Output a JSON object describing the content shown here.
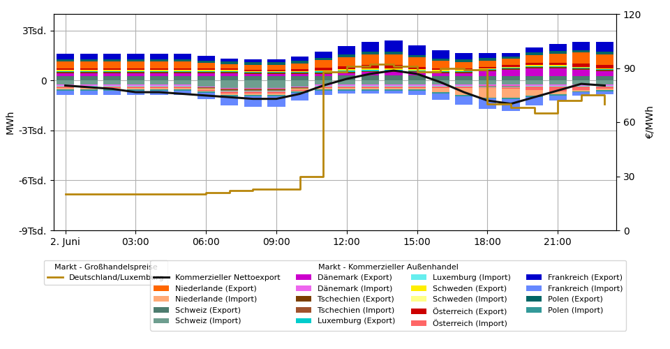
{
  "chart_data": {
    "type": "bar",
    "stacked": true,
    "grid": true,
    "x": [
      0,
      1,
      2,
      3,
      4,
      5,
      6,
      7,
      8,
      9,
      10,
      11,
      12,
      13,
      14,
      15,
      16,
      17,
      18,
      19,
      20,
      21,
      22,
      23
    ],
    "xlim": [
      -0.5,
      23.5
    ],
    "xticks": [
      {
        "value": 0,
        "label": "2. Juni"
      },
      {
        "value": 3,
        "label": "03:00"
      },
      {
        "value": 6,
        "label": "06:00"
      },
      {
        "value": 9,
        "label": "09:00"
      },
      {
        "value": 12,
        "label": "12:00"
      },
      {
        "value": 15,
        "label": "15:00"
      },
      {
        "value": 18,
        "label": "18:00"
      },
      {
        "value": 21,
        "label": "21:00"
      }
    ],
    "ylim": [
      -9000,
      4000
    ],
    "yticks": [
      {
        "value": -9000,
        "label": "-9Tsd."
      },
      {
        "value": -6000,
        "label": "-6Tsd."
      },
      {
        "value": -3000,
        "label": "-3Tsd."
      },
      0,
      {
        "value": 3000,
        "label": "3Tsd."
      }
    ],
    "y2lim": [
      0,
      120
    ],
    "y2ticks": [
      0,
      30,
      60,
      90,
      120
    ],
    "y_label": "MWh",
    "y2_label": "€/MWh",
    "series": [
      {
        "name": "Schweiz (Export)",
        "color": "#4D7C6F",
        "values": [
          250,
          250,
          250,
          250,
          250,
          250,
          250,
          250,
          250,
          250,
          250,
          250,
          300,
          300,
          300,
          300,
          250,
          250,
          250,
          250,
          250,
          250,
          250,
          250
        ]
      },
      {
        "name": "Schweiz (Import)",
        "color": "#6E9E8F",
        "values": [
          -250,
          -250,
          -250,
          -250,
          -250,
          -250,
          -350,
          -450,
          -450,
          -450,
          -350,
          -250,
          -250,
          -250,
          -250,
          -250,
          -250,
          -250,
          -250,
          -250,
          -250,
          -250,
          -250,
          -250
        ]
      },
      {
        "name": "Dänemark (Export)",
        "color": "#CC00CC",
        "values": [
          200,
          200,
          200,
          200,
          200,
          200,
          200,
          200,
          150,
          150,
          150,
          150,
          150,
          200,
          200,
          200,
          200,
          200,
          300,
          400,
          500,
          500,
          400,
          300
        ]
      },
      {
        "name": "Dänemark (Import)",
        "color": "#EE66EE",
        "values": [
          -50,
          -50,
          -50,
          -50,
          -50,
          -50,
          -50,
          -50,
          -50,
          -50,
          -50,
          -50,
          -50,
          -50,
          -50,
          -50,
          -50,
          -50,
          -80,
          -80,
          -50,
          -50,
          -50,
          -50
        ]
      },
      {
        "name": "Tschechien (Export)",
        "color": "#7B3F00",
        "values": [
          80,
          80,
          80,
          80,
          80,
          80,
          80,
          80,
          80,
          80,
          80,
          80,
          80,
          80,
          80,
          80,
          80,
          80,
          80,
          80,
          80,
          80,
          80,
          80
        ]
      },
      {
        "name": "Tschechien (Import)",
        "color": "#A0522D",
        "values": [
          -40,
          -40,
          -40,
          -40,
          -40,
          -40,
          -80,
          -120,
          -120,
          -120,
          -80,
          -40,
          -40,
          -40,
          -40,
          -40,
          -40,
          -40,
          -40,
          -40,
          -40,
          -40,
          -40,
          -40
        ]
      },
      {
        "name": "Luxemburg (Export)",
        "color": "#00CCCC",
        "values": [
          40,
          40,
          40,
          40,
          40,
          40,
          40,
          40,
          40,
          40,
          40,
          80,
          80,
          80,
          80,
          40,
          40,
          40,
          40,
          40,
          40,
          40,
          40,
          40
        ]
      },
      {
        "name": "Luxemburg (Import)",
        "color": "#66EEEE",
        "values": [
          -15,
          -15,
          -15,
          -15,
          -15,
          -15,
          -15,
          -25,
          -25,
          -25,
          -15,
          -15,
          -15,
          -15,
          -15,
          -15,
          -15,
          -15,
          -15,
          -15,
          -15,
          -15,
          -15,
          -15
        ]
      },
      {
        "name": "Schweden (Export)",
        "color": "#FFEE00",
        "values": [
          60,
          60,
          60,
          60,
          60,
          60,
          60,
          60,
          60,
          60,
          60,
          60,
          60,
          60,
          60,
          60,
          60,
          60,
          60,
          60,
          60,
          60,
          60,
          60
        ]
      },
      {
        "name": "Schweden (Import)",
        "color": "#FFFF88",
        "values": [
          -20,
          -20,
          -20,
          -20,
          -20,
          -20,
          -20,
          -20,
          -20,
          -20,
          -20,
          -20,
          -20,
          -20,
          -20,
          -20,
          -20,
          -20,
          -20,
          -20,
          -20,
          -20,
          -20,
          -20
        ]
      },
      {
        "name": "Österreich (Export)",
        "color": "#CC0000",
        "values": [
          100,
          100,
          100,
          100,
          100,
          100,
          80,
          80,
          80,
          80,
          100,
          150,
          200,
          200,
          200,
          150,
          100,
          100,
          100,
          100,
          150,
          150,
          200,
          200
        ]
      },
      {
        "name": "Österreich (Import)",
        "color": "#FF6666",
        "values": [
          -60,
          -60,
          -60,
          -60,
          -60,
          -60,
          -80,
          -120,
          -120,
          -120,
          -80,
          -60,
          -60,
          -60,
          -60,
          -60,
          -60,
          -60,
          -60,
          -80,
          -180,
          -270,
          -180,
          -120
        ]
      },
      {
        "name": "Niederlande (Export)",
        "color": "#FF6600",
        "values": [
          400,
          400,
          400,
          400,
          400,
          400,
          350,
          280,
          280,
          280,
          350,
          450,
          550,
          650,
          650,
          550,
          450,
          380,
          380,
          380,
          450,
          550,
          650,
          650
        ]
      },
      {
        "name": "Niederlande (Import)",
        "color": "#FFAA77",
        "values": [
          -80,
          -80,
          -80,
          -80,
          -80,
          -80,
          -80,
          -80,
          -80,
          -80,
          -80,
          -80,
          -80,
          -80,
          -80,
          -80,
          -250,
          -450,
          -550,
          -550,
          -350,
          -180,
          -80,
          -80
        ]
      },
      {
        "name": "Polen (Export)",
        "color": "#006666",
        "values": [
          150,
          150,
          150,
          150,
          150,
          150,
          150,
          150,
          150,
          150,
          150,
          150,
          150,
          150,
          150,
          150,
          150,
          150,
          150,
          150,
          150,
          150,
          150,
          150
        ]
      },
      {
        "name": "Polen (Import)",
        "color": "#339999",
        "values": [
          -80,
          -80,
          -80,
          -80,
          -80,
          -80,
          -80,
          -80,
          -80,
          -80,
          -80,
          -80,
          -80,
          -80,
          -80,
          -80,
          -80,
          -80,
          -80,
          -80,
          -80,
          -80,
          -80,
          -80
        ]
      },
      {
        "name": "Frankreich (Export)",
        "color": "#0000CC",
        "values": [
          350,
          350,
          350,
          350,
          350,
          350,
          280,
          180,
          180,
          180,
          280,
          380,
          500,
          600,
          700,
          600,
          500,
          400,
          300,
          200,
          300,
          400,
          500,
          600
        ]
      },
      {
        "name": "Frankreich (Import)",
        "color": "#6688FF",
        "values": [
          -250,
          -250,
          -250,
          -250,
          -250,
          -250,
          -350,
          -550,
          -650,
          -650,
          -450,
          -250,
          -180,
          -180,
          -180,
          -250,
          -380,
          -500,
          -600,
          -700,
          -500,
          -300,
          -180,
          -180
        ]
      },
      {
        "name": "Kommerzieller Nettoexport",
        "type": "line",
        "color": "#111111",
        "values": [
          -300,
          -400,
          -500,
          -700,
          -700,
          -800,
          -900,
          -1000,
          -1100,
          -1100,
          -800,
          -300,
          100,
          400,
          600,
          400,
          -100,
          -700,
          -1200,
          -1400,
          -1000,
          -600,
          -200,
          -300
        ]
      },
      {
        "name": "Deutschland/Luxemburg",
        "type": "step",
        "axis": "y2",
        "color": "#B8860B",
        "values": [
          20,
          20,
          20,
          20,
          20,
          20,
          21,
          22,
          23,
          23,
          30,
          88,
          91,
          92,
          91,
          88,
          90,
          89,
          70,
          68,
          65,
          72,
          75,
          70
        ]
      }
    ],
    "legend_groups": [
      {
        "title": "Markt - Großhandelspreise",
        "entries": [
          "Deutschland/Luxemburg"
        ]
      },
      {
        "title": "Markt - Kommerzieller Außenhandel",
        "entries": [
          "Kommerzieller Nettoexport",
          "Niederlande (Export)",
          "Niederlande (Import)",
          "Schweiz (Export)",
          "Schweiz (Import)",
          "Dänemark (Export)",
          "Dänemark (Import)",
          "Tschechien (Export)",
          "Tschechien (Import)",
          "Luxemburg (Export)",
          "Luxemburg (Import)",
          "Schweden (Export)",
          "Schweden (Import)",
          "Österreich (Export)",
          "Österreich (Import)",
          "Frankreich (Export)",
          "Frankreich (Import)",
          "Polen (Export)",
          "Polen (Import)"
        ]
      }
    ]
  }
}
